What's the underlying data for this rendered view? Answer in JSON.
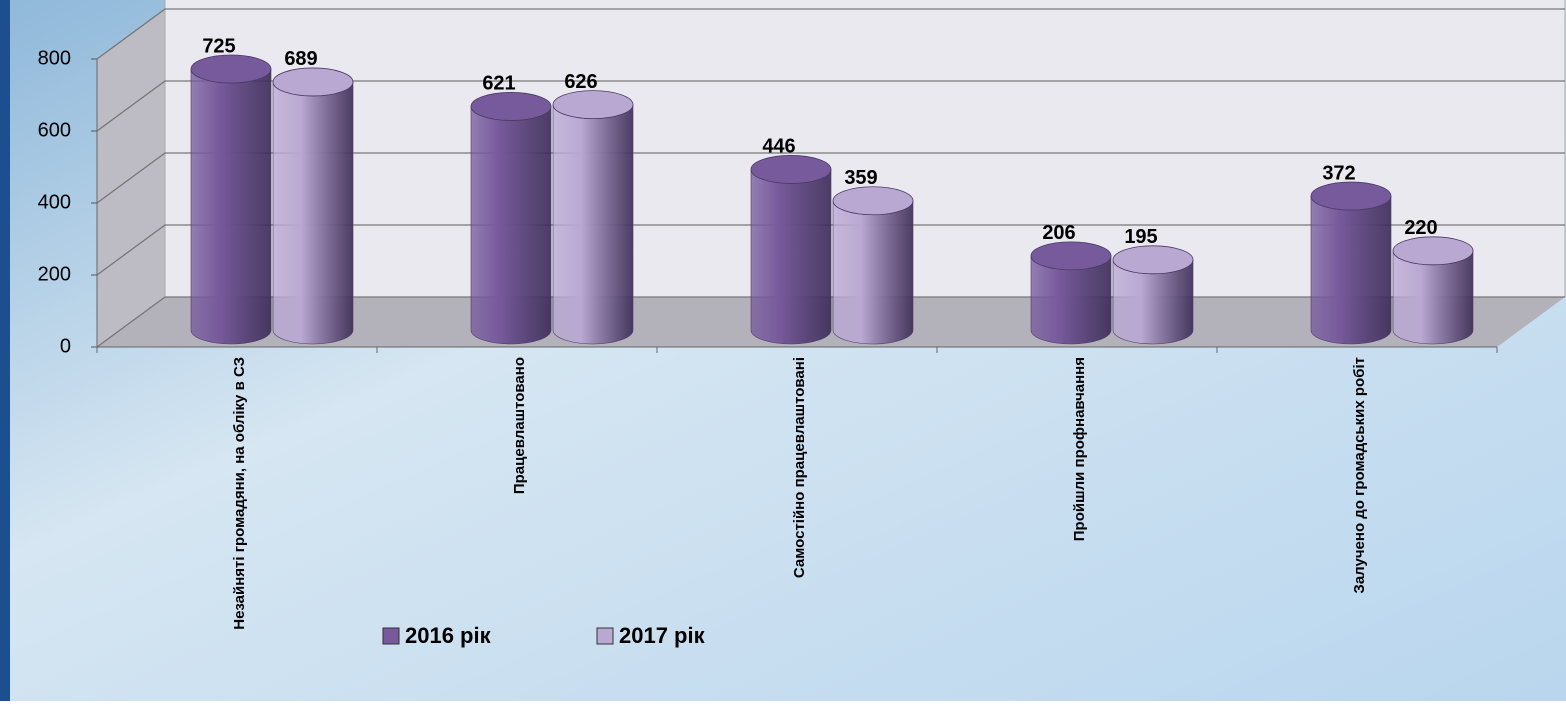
{
  "chart_data": {
    "type": "bar3d",
    "categories": [
      "Незайняті громадяни, на обліку в СЗ",
      "Працевлаштовано",
      "Самостійно працевлаштовані",
      "Пройшли профнавчання",
      "Залучено до громадських робіт"
    ],
    "series": [
      {
        "name": "2016 рік",
        "color": "#775a9c",
        "values": [
          725,
          621,
          446,
          206,
          372
        ]
      },
      {
        "name": "2017 рік",
        "color": "#b9a8d2",
        "values": [
          689,
          626,
          359,
          195,
          220
        ]
      }
    ],
    "ylim": [
      0,
      800
    ],
    "yticks": [
      0,
      200,
      400,
      600,
      800
    ],
    "grid": true
  }
}
